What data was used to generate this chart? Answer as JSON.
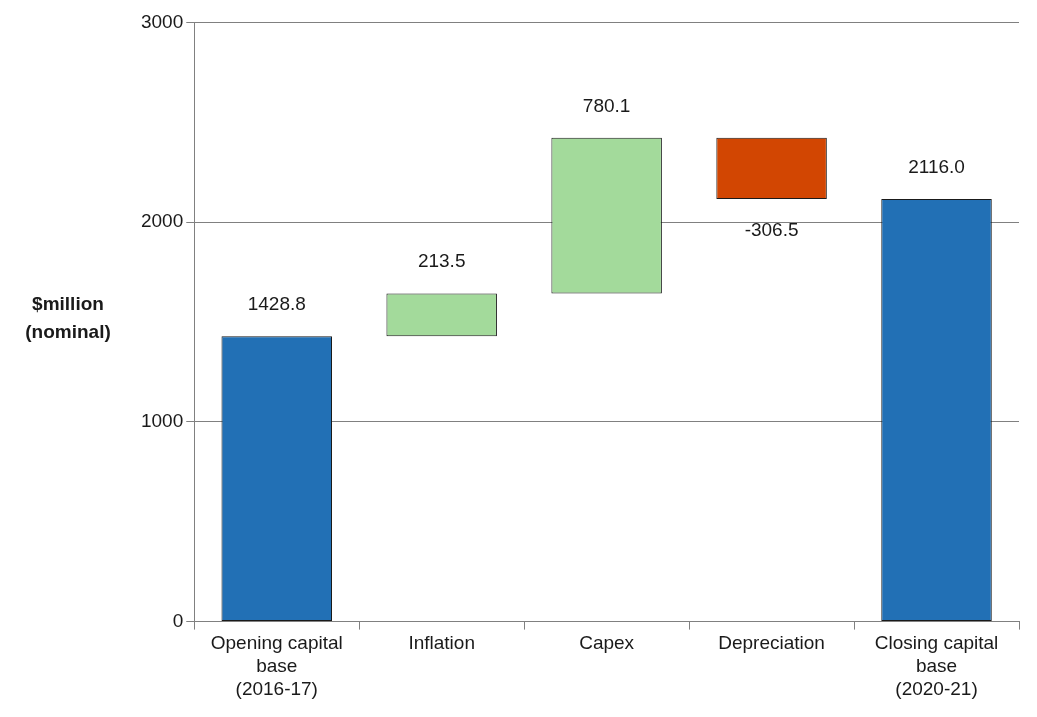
{
  "chart_data": {
    "type": "bar",
    "ylabel": "$million (nominal)",
    "categories": [
      "Opening capital base (2016-17)",
      "Inflation",
      "Capex",
      "Depreciation",
      "Closing capital base (2020-21)"
    ],
    "values": [
      1428.8,
      213.5,
      780.1,
      -306.5,
      2116.0
    ],
    "base": [
      0,
      1428.8,
      1642.3,
      2422.4,
      0
    ],
    "colors": [
      "#2270b5",
      "#a3da9b",
      "#a3da9b",
      "#d24602",
      "#2270b5"
    ],
    "value_labels": [
      "1428.8",
      "213.5",
      "780.1",
      "-306.5",
      "2116.0"
    ],
    "ylim": [
      0,
      3000
    ],
    "yticks": [
      0,
      1000,
      2000,
      3000
    ],
    "grid": "y",
    "legend": false
  }
}
